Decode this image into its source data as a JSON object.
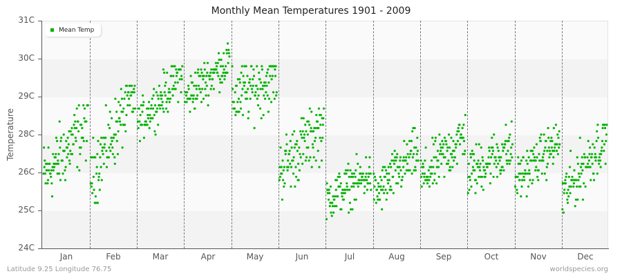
{
  "header": {
    "title": "Monthly Mean Temperatures 1901 - 2009"
  },
  "legend": {
    "label": "Mean Temp",
    "color": "#00b200"
  },
  "axes": {
    "ylabel": "Temperature",
    "yticks": [
      "31C",
      "30C",
      "29C",
      "28C",
      "26C",
      "25C",
      "24C"
    ],
    "xticks": [
      "Jan",
      "Feb",
      "Mar",
      "Apr",
      "May",
      "Jun",
      "Jul",
      "Aug",
      "Sep",
      "Oct",
      "Nov",
      "Dec"
    ]
  },
  "footer": {
    "location": "Latitude 9.25 Longitude 76.75",
    "source": "worldspecies.org"
  },
  "chart_data": {
    "type": "scatter",
    "title": "Monthly Mean Temperatures 1901 - 2009",
    "xlabel": "",
    "ylabel": "Temperature",
    "ylim": [
      24,
      31
    ],
    "ytick_labels": [
      "24C",
      "25C",
      "26C",
      "28C",
      "29C",
      "30C",
      "31C"
    ],
    "categories": [
      "Jan",
      "Feb",
      "Mar",
      "Apr",
      "May",
      "Jun",
      "Jul",
      "Aug",
      "Sep",
      "Oct",
      "Nov",
      "Dec"
    ],
    "legend": [
      "Mean Temp"
    ],
    "legend_position": "top-left",
    "grid": "alternating horizontal bands; dashed vertical month separators",
    "years": [
      1901,
      2009
    ],
    "series": [
      {
        "name": "Mean Temp",
        "color": "#00b200",
        "monthly_summary": [
          {
            "month": "Jan",
            "min": 24.8,
            "max": 28.4,
            "start": 26.2,
            "end": 27.8
          },
          {
            "month": "Feb",
            "min": 25.4,
            "max": 29.0,
            "start": 26.2,
            "end": 28.8
          },
          {
            "month": "Mar",
            "min": 27.3,
            "max": 29.6,
            "start": 27.8,
            "end": 29.4
          },
          {
            "month": "Apr",
            "min": 28.0,
            "max": 30.3,
            "start": 28.6,
            "end": 29.8
          },
          {
            "month": "May",
            "min": 26.2,
            "max": 29.6,
            "start": 28.6,
            "end": 29.3
          },
          {
            "month": "Jun",
            "min": 24.9,
            "max": 28.3,
            "start": 26.4,
            "end": 27.8
          },
          {
            "month": "Jul",
            "min": 24.8,
            "max": 27.1,
            "start": 25.5,
            "end": 26.3
          },
          {
            "month": "Aug",
            "min": 25.2,
            "max": 27.8,
            "start": 25.6,
            "end": 27.0
          },
          {
            "month": "Sep",
            "min": 25.3,
            "max": 28.1,
            "start": 26.1,
            "end": 27.5
          },
          {
            "month": "Oct",
            "min": 25.4,
            "max": 28.2,
            "start": 26.3,
            "end": 27.1
          },
          {
            "month": "Nov",
            "min": 25.4,
            "max": 27.8,
            "start": 26.1,
            "end": 27.3
          },
          {
            "month": "Dec",
            "min": 24.8,
            "max": 27.8,
            "start": 25.6,
            "end": 27.5
          }
        ]
      }
    ]
  }
}
